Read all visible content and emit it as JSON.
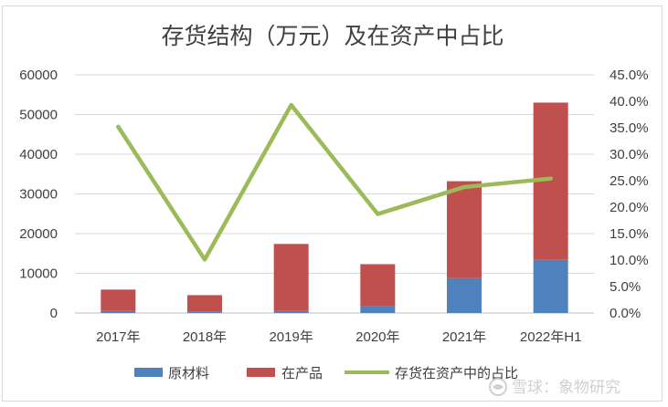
{
  "chart_data": {
    "type": "bar",
    "title": "存货结构（万元）及在资产中占比",
    "categories": [
      "2017年",
      "2018年",
      "2019年",
      "2020年",
      "2021年",
      "2022年H1"
    ],
    "series": [
      {
        "name": "原材料",
        "kind": "bar",
        "axis": "left",
        "color": "#4f81bd",
        "values": [
          500,
          300,
          500,
          1700,
          8800,
          13400
        ]
      },
      {
        "name": "在产品",
        "kind": "bar",
        "axis": "left",
        "color": "#c0504d",
        "values": [
          5400,
          4200,
          16900,
          10600,
          24400,
          39600
        ]
      },
      {
        "name": "存货在资产中的占比",
        "kind": "line",
        "axis": "right",
        "color": "#9bbb59",
        "values": [
          0.352,
          0.101,
          0.393,
          0.187,
          0.238,
          0.254
        ]
      }
    ],
    "y_left": {
      "min": 0,
      "max": 60000,
      "ticks": [
        "0",
        "10000",
        "20000",
        "30000",
        "40000",
        "50000",
        "60000"
      ]
    },
    "y_right": {
      "min": 0,
      "max": 0.45,
      "ticks": [
        "0.0%",
        "5.0%",
        "10.0%",
        "15.0%",
        "20.0%",
        "25.0%",
        "30.0%",
        "35.0%",
        "40.0%",
        "45.0%"
      ]
    },
    "stacked": true,
    "grid": true,
    "legend_position": "bottom"
  },
  "watermark": {
    "text": "雪球：象物研究",
    "icon": "snowball-logo-icon"
  }
}
